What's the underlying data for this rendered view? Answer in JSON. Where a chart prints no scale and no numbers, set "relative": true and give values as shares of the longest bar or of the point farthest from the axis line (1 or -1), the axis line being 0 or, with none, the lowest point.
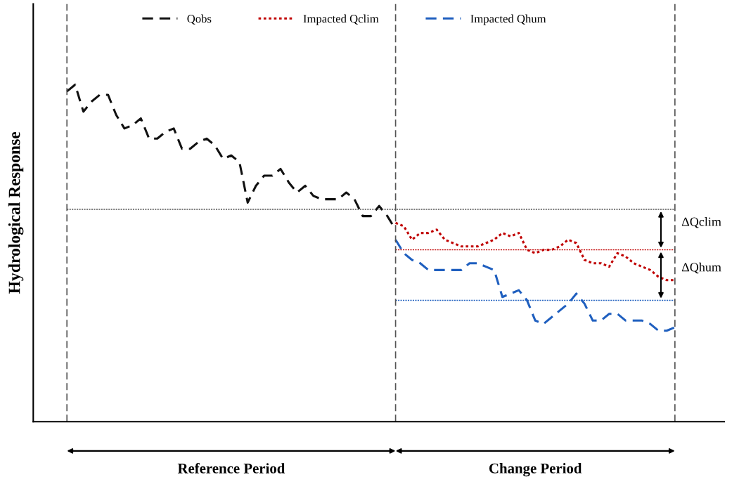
{
  "chart_data": {
    "type": "line",
    "relative": true,
    "ylabel": "Hydrological Response",
    "categories": [
      null,
      null,
      null,
      null,
      null,
      null,
      null,
      null,
      null,
      null,
      null,
      null,
      null,
      null,
      null,
      null,
      null,
      null,
      null,
      null,
      null,
      null,
      null,
      null,
      null,
      null,
      null,
      null,
      null,
      null,
      null,
      null,
      null,
      null,
      null,
      null,
      null,
      null,
      null,
      null,
      null,
      null,
      null,
      null,
      null,
      null,
      null,
      null,
      null,
      null,
      null,
      null,
      null,
      null,
      null,
      null,
      null,
      null,
      null,
      null,
      null,
      null,
      null,
      null,
      null,
      null,
      null,
      null,
      null,
      null,
      null,
      null,
      null,
      null,
      null
    ],
    "series": [
      {
        "name": "Qobs",
        "color": "#111111",
        "line_style": "dashed",
        "values": [
          0.98,
          1.0,
          0.92,
          0.95,
          0.97,
          0.97,
          0.91,
          0.87,
          0.88,
          0.9,
          0.84,
          0.84,
          0.86,
          0.87,
          0.81,
          0.81,
          0.83,
          0.84,
          0.82,
          0.78,
          0.79,
          0.77,
          0.65,
          0.7,
          0.73,
          0.73,
          0.75,
          0.71,
          0.68,
          0.7,
          0.67,
          0.66,
          0.66,
          0.66,
          0.68,
          0.66,
          0.61,
          0.61,
          0.64,
          0.61,
          0.57,
          null,
          null,
          null,
          null,
          null,
          null,
          null,
          null,
          null,
          null,
          null,
          null,
          null,
          null,
          null,
          null,
          null,
          null,
          null,
          null,
          null,
          null,
          null,
          null,
          null,
          null,
          null,
          null,
          null,
          null,
          null,
          null,
          null,
          null
        ]
      },
      {
        "name": "Impacted Qclim",
        "color": "#c00000",
        "line_style": "dotted",
        "values": [
          null,
          null,
          null,
          null,
          null,
          null,
          null,
          null,
          null,
          null,
          null,
          null,
          null,
          null,
          null,
          null,
          null,
          null,
          null,
          null,
          null,
          null,
          null,
          null,
          null,
          null,
          null,
          null,
          null,
          null,
          null,
          null,
          null,
          null,
          null,
          null,
          null,
          null,
          null,
          null,
          0.59,
          0.58,
          0.54,
          0.56,
          0.56,
          0.57,
          0.54,
          0.53,
          0.52,
          0.52,
          0.52,
          0.53,
          0.54,
          0.56,
          0.55,
          0.56,
          0.51,
          0.5,
          0.51,
          0.51,
          0.52,
          0.54,
          0.53,
          0.48,
          0.47,
          0.47,
          0.46,
          0.5,
          0.49,
          0.47,
          0.46,
          0.45,
          0.43,
          0.42,
          0.42
        ]
      },
      {
        "name": "Impacted Qhum",
        "color": "#1f5fbf",
        "line_style": "dashed",
        "values": [
          null,
          null,
          null,
          null,
          null,
          null,
          null,
          null,
          null,
          null,
          null,
          null,
          null,
          null,
          null,
          null,
          null,
          null,
          null,
          null,
          null,
          null,
          null,
          null,
          null,
          null,
          null,
          null,
          null,
          null,
          null,
          null,
          null,
          null,
          null,
          null,
          null,
          null,
          null,
          null,
          0.54,
          0.5,
          0.48,
          0.47,
          0.45,
          0.45,
          0.45,
          0.45,
          0.45,
          0.47,
          0.47,
          0.46,
          0.45,
          0.37,
          0.38,
          0.39,
          0.36,
          0.3,
          0.29,
          0.31,
          0.33,
          0.35,
          0.38,
          0.35,
          0.3,
          0.3,
          0.32,
          0.32,
          0.3,
          0.3,
          0.3,
          0.29,
          0.27,
          0.27,
          0.28
        ]
      },
      {
        "color": "#555555",
        "line_style": "dotted",
        "values": [
          0.63,
          0.63,
          0.63,
          0.63,
          0.63,
          0.63,
          0.63,
          0.63,
          0.63,
          0.63,
          0.63,
          0.63,
          0.63,
          0.63,
          0.63,
          0.63,
          0.63,
          0.63,
          0.63,
          0.63,
          0.63,
          0.63,
          0.63,
          0.63,
          0.63,
          0.63,
          0.63,
          0.63,
          0.63,
          0.63,
          0.63,
          0.63,
          0.63,
          0.63,
          0.63,
          0.63,
          0.63,
          0.63,
          0.63,
          0.63,
          0.63,
          0.63,
          0.63,
          0.63,
          0.63,
          0.63,
          0.63,
          0.63,
          0.63,
          0.63,
          0.63,
          0.63,
          0.63,
          0.63,
          0.63,
          0.63,
          0.63,
          0.63,
          0.63,
          0.63,
          0.63,
          0.63,
          0.63,
          0.63,
          0.63,
          0.63,
          0.63,
          0.63,
          0.63,
          0.63,
          0.63,
          0.63,
          0.63,
          0.63,
          0.63
        ]
      },
      {
        "color": "#c00000",
        "line_style": "dotted",
        "values": [
          null,
          null,
          null,
          null,
          null,
          null,
          null,
          null,
          null,
          null,
          null,
          null,
          null,
          null,
          null,
          null,
          null,
          null,
          null,
          null,
          null,
          null,
          null,
          null,
          null,
          null,
          null,
          null,
          null,
          null,
          null,
          null,
          null,
          null,
          null,
          null,
          null,
          null,
          null,
          null,
          0.51,
          0.51,
          0.51,
          0.51,
          0.51,
          0.51,
          0.51,
          0.51,
          0.51,
          0.51,
          0.51,
          0.51,
          0.51,
          0.51,
          0.51,
          0.51,
          0.51,
          0.51,
          0.51,
          0.51,
          0.51,
          0.51,
          0.51,
          0.51,
          0.51,
          0.51,
          0.51,
          0.51,
          0.51,
          0.51,
          0.51,
          0.51,
          0.51,
          0.51,
          0.51
        ]
      },
      {
        "color": "#1f5fbf",
        "line_style": "dotted",
        "values": [
          null,
          null,
          null,
          null,
          null,
          null,
          null,
          null,
          null,
          null,
          null,
          null,
          null,
          null,
          null,
          null,
          null,
          null,
          null,
          null,
          null,
          null,
          null,
          null,
          null,
          null,
          null,
          null,
          null,
          null,
          null,
          null,
          null,
          null,
          null,
          null,
          null,
          null,
          null,
          null,
          0.36,
          0.36,
          0.36,
          0.36,
          0.36,
          0.36,
          0.36,
          0.36,
          0.36,
          0.36,
          0.36,
          0.36,
          0.36,
          0.36,
          0.36,
          0.36,
          0.36,
          0.36,
          0.36,
          0.36,
          0.36,
          0.36,
          0.36,
          0.36,
          0.36,
          0.36,
          0.36,
          0.36,
          0.36,
          0.36,
          0.36,
          0.36,
          0.36,
          0.36,
          0.36
        ]
      }
    ],
    "annotations": [
      "ΔQclim",
      "ΔQhum",
      "Reference Period",
      "Change Period"
    ],
    "legend": "top",
    "grid": false,
    "marker": "none"
  }
}
